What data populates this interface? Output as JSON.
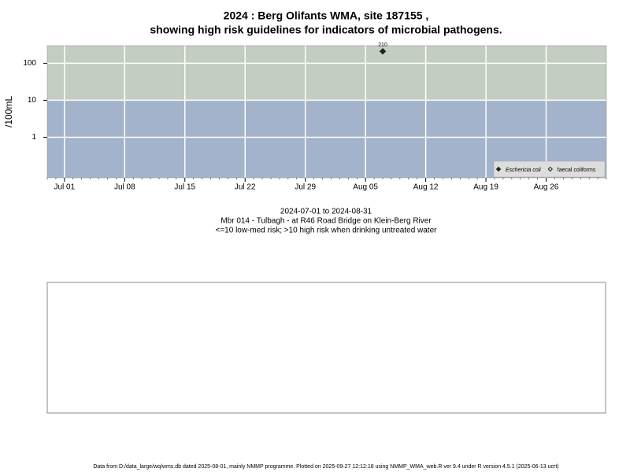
{
  "chart_data": {
    "type": "scatter",
    "title": "2024 : Berg Olifants WMA, site 187155 ,",
    "subtitle": "showing high risk guidelines for indicators of microbial pathogens.",
    "y_label": "/100mL",
    "log_y": true,
    "xlim": [
      "2024-06-29",
      "2024-09-02"
    ],
    "ylim": [
      0.08,
      300
    ],
    "xticks": [
      {
        "value": "2024-07-01",
        "label": "Jul 01"
      },
      {
        "value": "2024-07-08",
        "label": "Jul 08"
      },
      {
        "value": "2024-07-15",
        "label": "Jul 15"
      },
      {
        "value": "2024-07-22",
        "label": "Jul 22"
      },
      {
        "value": "2024-07-29",
        "label": "Jul 29"
      },
      {
        "value": "2024-08-05",
        "label": "Aug 05"
      },
      {
        "value": "2024-08-12",
        "label": "Aug 12"
      },
      {
        "value": "2024-08-19",
        "label": "Aug 19"
      },
      {
        "value": "2024-08-26",
        "label": "Aug 26"
      }
    ],
    "yticks": [
      1,
      10,
      100
    ],
    "grid": true,
    "risk_threshold": 10,
    "band_colors": {
      "low": "#a3b3cb",
      "high": "#c3cdc1"
    },
    "legend": "bottom-right",
    "series": [
      {
        "name": "Eschericia coli",
        "color": "#1a2a1a",
        "marker": "filled",
        "x": [
          "2024-08-07"
        ],
        "values": [
          210
        ]
      },
      {
        "name": "faecal coliforms",
        "color": "#1a2a1a",
        "marker": "open",
        "x": [],
        "values": []
      }
    ],
    "caption": [
      "2024-07-01 to 2024-08-31",
      "Mbr 014 - Tulbagh - at R46 Road Bridge on Klein-Berg River",
      "<=10 low-med risk; >10 high risk when drinking untreated water"
    ],
    "footer": "Data from D:/data_large/wq/wms.db dated 2025-08-01, mainly NMMP programme. Plotted on 2025-09-27 12:12:18 using NMMP_WMA_web.R ver 9.4 under R version 4.5.1 (2025-06-13 ucrt)"
  }
}
